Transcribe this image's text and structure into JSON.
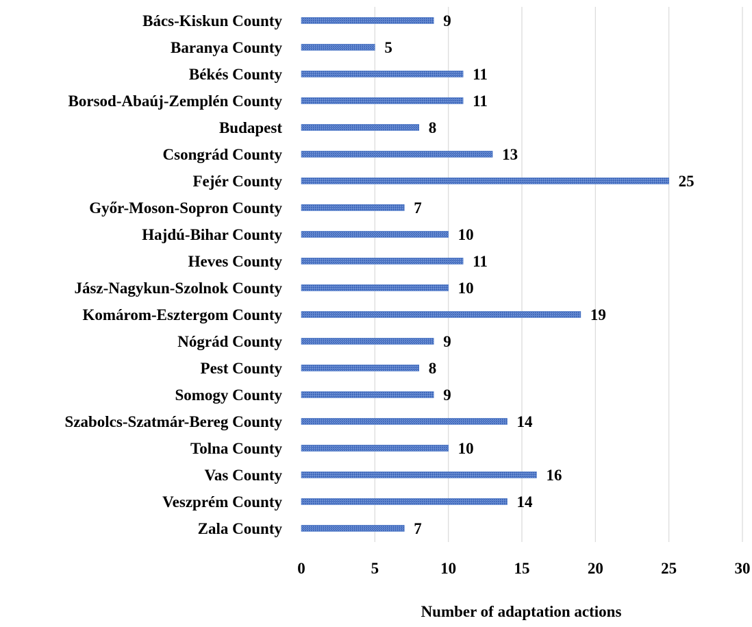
{
  "chart_data": {
    "type": "bar",
    "orientation": "horizontal",
    "categories": [
      "Bács-Kiskun County",
      "Baranya County",
      "Békés County",
      "Borsod-Abaúj-Zemplén County",
      "Budapest",
      "Csongrád County",
      "Fejér County",
      "Győr-Moson-Sopron County",
      "Hajdú-Bihar County",
      "Heves County",
      "Jász-Nagykun-Szolnok County",
      "Komárom-Esztergom County",
      "Nógrád County",
      "Pest County",
      "Somogy County",
      "Szabolcs-Szatmár-Bereg County",
      "Tolna County",
      "Vas County",
      "Veszprém County",
      "Zala County"
    ],
    "values": [
      9,
      5,
      11,
      11,
      8,
      13,
      25,
      7,
      10,
      11,
      10,
      19,
      9,
      8,
      9,
      14,
      10,
      16,
      14,
      7
    ],
    "xlabel": "Number of adaptation actions",
    "ylabel": "",
    "xlim": [
      0,
      30
    ],
    "xticks": [
      0,
      5,
      10,
      15,
      20,
      25,
      30
    ],
    "grid": "vertical",
    "legend": "none",
    "bar_color": "#4472c4",
    "data_labels": true
  }
}
